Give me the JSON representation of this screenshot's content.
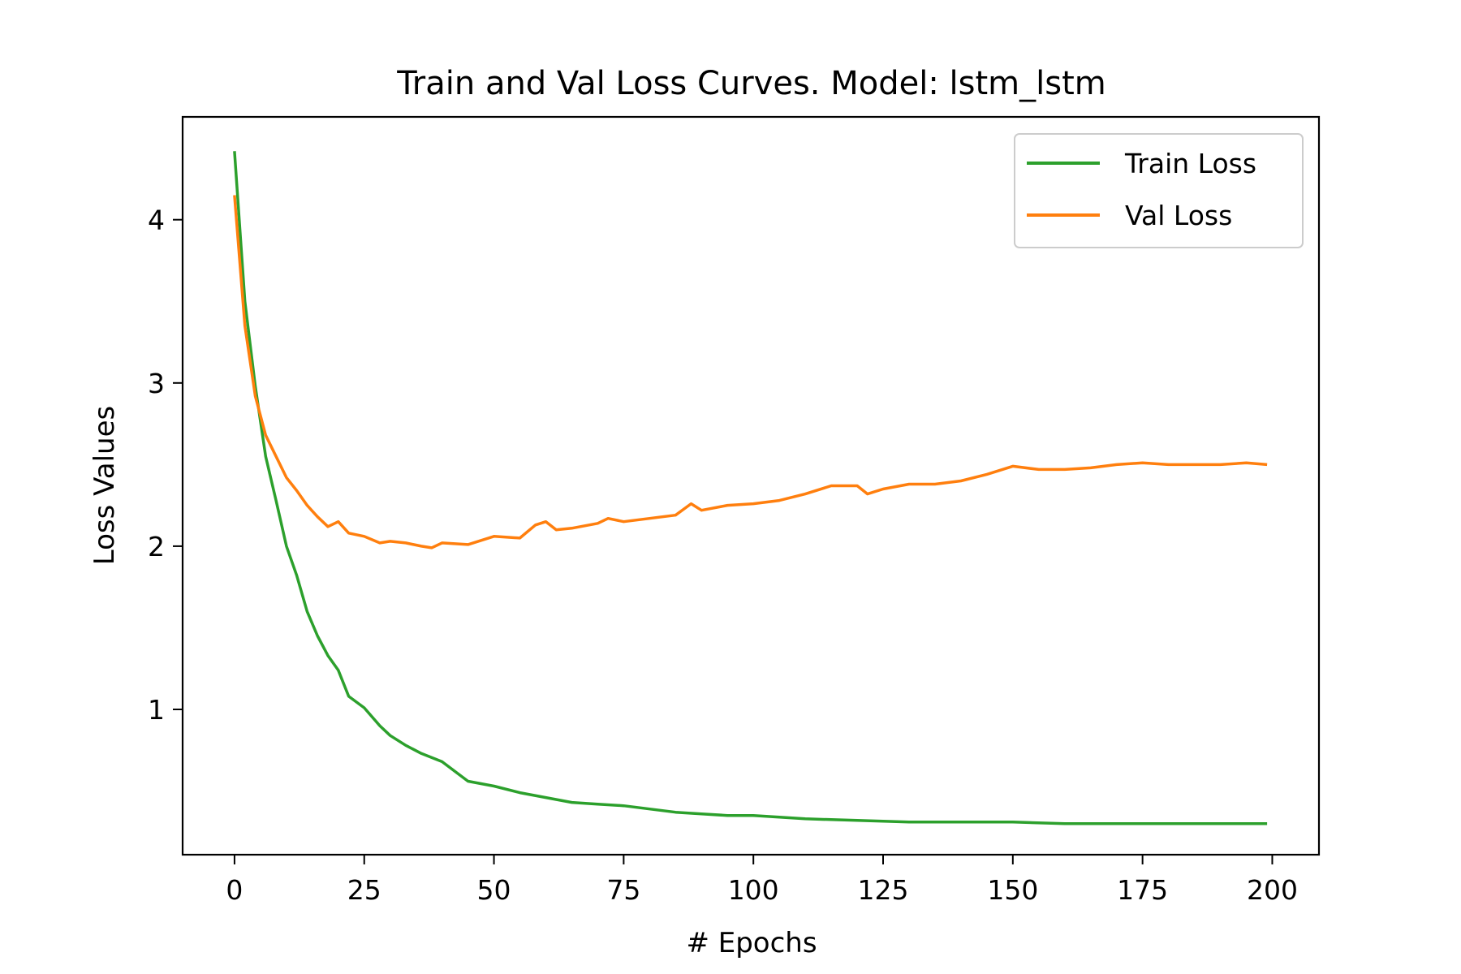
{
  "chart_data": {
    "type": "line",
    "title": "Train and Val Loss Curves. Model: lstm_lstm",
    "xlabel": "# Epochs",
    "ylabel": "Loss Values",
    "xlim": [
      -10,
      209
    ],
    "ylim": [
      0.11,
      4.63
    ],
    "xticks": [
      0,
      25,
      50,
      75,
      100,
      125,
      150,
      175,
      200
    ],
    "yticks": [
      1,
      2,
      3,
      4
    ],
    "grid": false,
    "legend_position": "top-right",
    "series": [
      {
        "name": "Train Loss",
        "color": "#2ca02c",
        "x": [
          0,
          2,
          4,
          6,
          8,
          10,
          12,
          14,
          16,
          18,
          20,
          22,
          25,
          28,
          30,
          33,
          36,
          40,
          45,
          50,
          55,
          60,
          65,
          70,
          75,
          80,
          85,
          90,
          95,
          100,
          110,
          120,
          130,
          140,
          150,
          160,
          170,
          180,
          190,
          199
        ],
        "y": [
          4.42,
          3.5,
          2.98,
          2.55,
          2.28,
          2.0,
          1.82,
          1.6,
          1.45,
          1.33,
          1.24,
          1.08,
          1.01,
          0.9,
          0.84,
          0.78,
          0.73,
          0.68,
          0.56,
          0.53,
          0.49,
          0.46,
          0.43,
          0.42,
          0.41,
          0.39,
          0.37,
          0.36,
          0.35,
          0.35,
          0.33,
          0.32,
          0.31,
          0.31,
          0.31,
          0.3,
          0.3,
          0.3,
          0.3,
          0.3
        ]
      },
      {
        "name": "Val Loss",
        "color": "#ff7f0e",
        "x": [
          0,
          2,
          4,
          6,
          8,
          10,
          12,
          14,
          16,
          18,
          20,
          22,
          25,
          28,
          30,
          33,
          36,
          38,
          40,
          45,
          50,
          55,
          58,
          60,
          62,
          65,
          70,
          72,
          75,
          80,
          85,
          88,
          90,
          95,
          100,
          105,
          110,
          115,
          120,
          122,
          125,
          130,
          135,
          140,
          145,
          150,
          155,
          160,
          165,
          170,
          175,
          180,
          185,
          190,
          195,
          199
        ],
        "y": [
          4.15,
          3.35,
          2.92,
          2.68,
          2.55,
          2.42,
          2.34,
          2.25,
          2.18,
          2.12,
          2.15,
          2.08,
          2.06,
          2.02,
          2.03,
          2.02,
          2.0,
          1.99,
          2.02,
          2.01,
          2.06,
          2.05,
          2.13,
          2.15,
          2.1,
          2.11,
          2.14,
          2.17,
          2.15,
          2.17,
          2.19,
          2.26,
          2.22,
          2.25,
          2.26,
          2.28,
          2.32,
          2.37,
          2.37,
          2.32,
          2.35,
          2.38,
          2.38,
          2.4,
          2.44,
          2.49,
          2.47,
          2.47,
          2.48,
          2.5,
          2.51,
          2.5,
          2.5,
          2.5,
          2.51,
          2.5
        ]
      }
    ]
  }
}
